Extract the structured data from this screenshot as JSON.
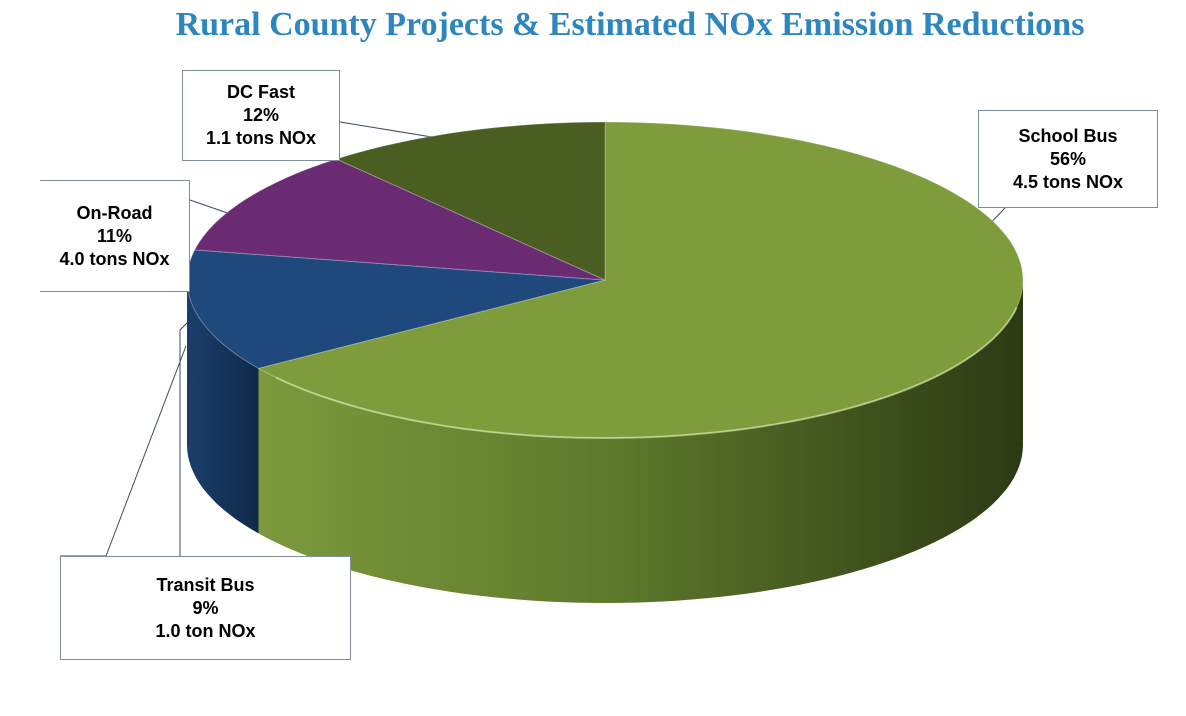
{
  "chart_data": {
    "type": "pie",
    "title": "Rural County Projects & Estimated NOx Emission Reductions",
    "categories": [
      "School Bus",
      "Transit Bus",
      "On-Road",
      "DC Fast"
    ],
    "values": [
      56,
      9,
      11,
      12
    ],
    "value_unit": "%",
    "slices": [
      {
        "name": "School Bus",
        "percent_label": "56%",
        "detail": "4.5 tons NOx",
        "color": "#7f9c3d"
      },
      {
        "name": "Transit Bus",
        "percent_label": "9%",
        "detail": "1.0 ton NOx",
        "color": "#1f497d"
      },
      {
        "name": "On-Road",
        "percent_label": "11%",
        "detail": "4.0 tons NOx",
        "color": "#6b2b73"
      },
      {
        "name": "DC Fast",
        "percent_label": "12%",
        "detail": "1.1 tons NOx",
        "color": "#4a5e22"
      }
    ],
    "style": "3d-pie",
    "legend": "none",
    "data_labels": "callouts"
  }
}
